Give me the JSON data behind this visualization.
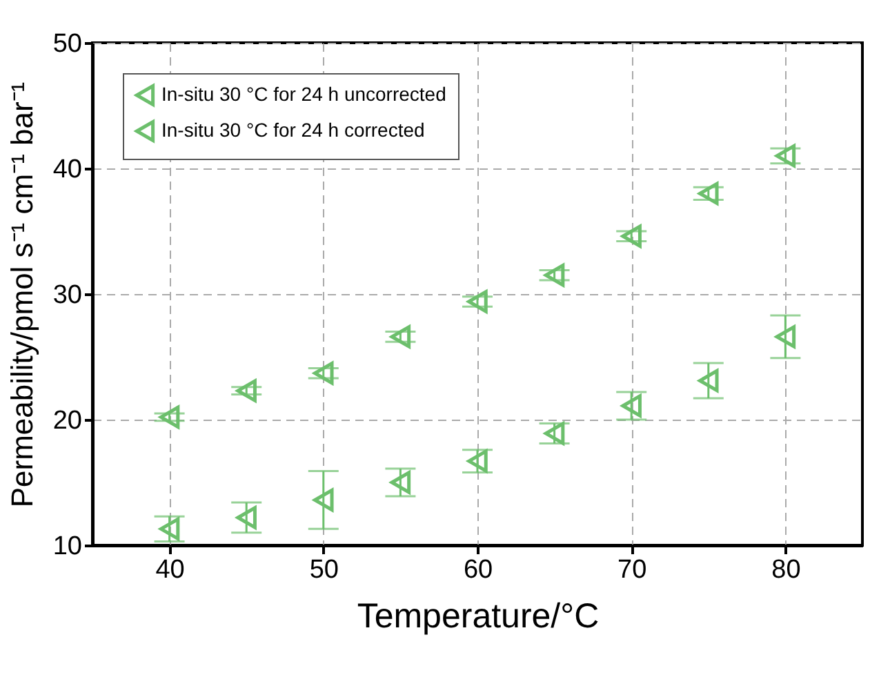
{
  "chart_data": {
    "type": "scatter",
    "xlabel": "Temperature/°C",
    "ylabel": "Permeability/pmol s⁻¹ cm⁻¹ bar⁻¹",
    "x": [
      40,
      45,
      50,
      55,
      60,
      65,
      70,
      75,
      80
    ],
    "series": [
      {
        "name": "In-situ 30 °C for 24 h uncorrected",
        "color": "#6cbf6c",
        "values": [
          11.3,
          12.2,
          13.6,
          15.0,
          16.7,
          18.9,
          21.1,
          23.1,
          26.6
        ],
        "errors": [
          1.0,
          1.2,
          2.3,
          1.1,
          0.9,
          0.8,
          1.1,
          1.4,
          1.7
        ]
      },
      {
        "name": "In-situ 30 °C for 24 h corrected",
        "color": "#6cbf6c",
        "values": [
          20.2,
          22.3,
          23.7,
          26.6,
          29.4,
          31.5,
          34.6,
          38.0,
          41.0
        ],
        "errors": [
          0.3,
          0.3,
          0.4,
          0.4,
          0.4,
          0.4,
          0.4,
          0.5,
          0.6
        ]
      }
    ],
    "xlim": [
      35,
      85
    ],
    "xticks": [
      40,
      50,
      60,
      70,
      80
    ],
    "ylim": [
      10,
      50
    ],
    "yticks": [
      10,
      20,
      30,
      40,
      50
    ],
    "grid": true,
    "legend": "top left",
    "marker": "triangle"
  }
}
